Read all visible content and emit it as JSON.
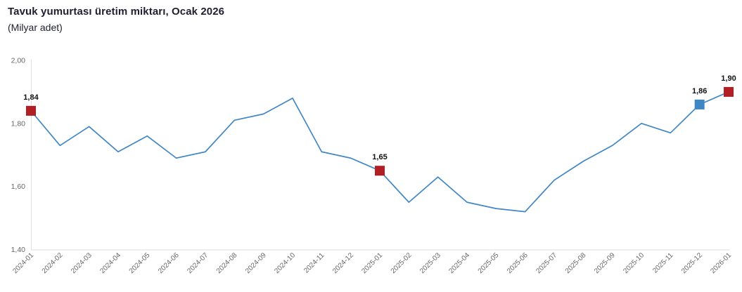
{
  "header": {
    "title": "Tavuk yumurtası üretim miktarı, Ocak 2026",
    "subtitle": "(Milyar adet)"
  },
  "chart_data": {
    "type": "line",
    "title": "Tavuk yumurtası üretim miktarı, Ocak 2026",
    "subtitle": "(Milyar adet)",
    "xlabel": "",
    "ylabel": "",
    "grid": false,
    "legend": false,
    "ylim": [
      1.4,
      2.0
    ],
    "yticks": [
      {
        "value": 2.0,
        "display": "2,00"
      },
      {
        "value": 1.8,
        "display": "1,80"
      },
      {
        "value": 1.6,
        "display": "1,60"
      },
      {
        "value": 1.4,
        "display": "1,40"
      }
    ],
    "categories": [
      "2024-01",
      "2024-02",
      "2024-03",
      "2024-04",
      "2024-05",
      "2024-06",
      "2024-07",
      "2024-08",
      "2024-09",
      "2024-10",
      "2024-11",
      "2024-12",
      "2025-01",
      "2025-02",
      "2025-03",
      "2025-04",
      "2025-05",
      "2025-06",
      "2025-07",
      "2025-08",
      "2025-09",
      "2025-10",
      "2025-11",
      "2025-12",
      "2026-01"
    ],
    "series": [
      {
        "name": "Tavuk yumurtası üretim miktarı",
        "values": [
          1.84,
          1.73,
          1.79,
          1.71,
          1.76,
          1.69,
          1.71,
          1.81,
          1.83,
          1.88,
          1.71,
          1.69,
          1.65,
          1.55,
          1.63,
          1.55,
          1.53,
          1.52,
          1.62,
          1.68,
          1.73,
          1.8,
          1.77,
          1.86,
          1.9
        ]
      }
    ],
    "annotated_points": [
      {
        "category": "2024-01",
        "value": 1.84,
        "label": "1,84",
        "marker_color": "#b11f24"
      },
      {
        "category": "2025-01",
        "value": 1.65,
        "label": "1,65",
        "marker_color": "#b11f24"
      },
      {
        "category": "2025-12",
        "value": 1.86,
        "label": "1,86",
        "marker_color": "#3d87c4"
      },
      {
        "category": "2026-01",
        "value": 1.9,
        "label": "1,90",
        "marker_color": "#b11f24"
      }
    ],
    "colors": {
      "line": "#4187c4",
      "marker_red": "#b11f24",
      "marker_blue": "#3d87c4",
      "axis_line": "#dedede",
      "tick_label": "#666666",
      "point_label": "#111111"
    }
  }
}
